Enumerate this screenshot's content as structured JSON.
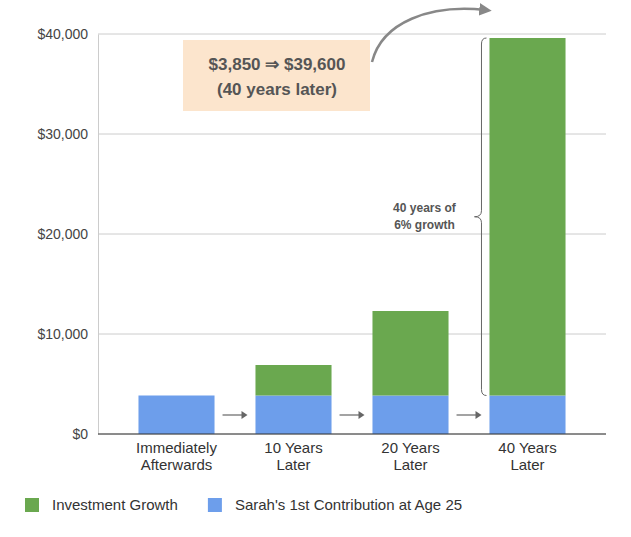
{
  "chart_data": {
    "type": "bar",
    "stacked": true,
    "grid": true,
    "legend": "bottom-left",
    "categories": [
      "Immediately Afterwards",
      "10 Years Later",
      "20 Years Later",
      "40 Years Later"
    ],
    "series": [
      {
        "name": "Investment Growth",
        "color": "#6aa84f",
        "values": [
          0,
          3050,
          8450,
          35750
        ]
      },
      {
        "name": "Sarah's 1st Contribution at Age 25",
        "color": "#6d9eeb",
        "values": [
          3850,
          3850,
          3850,
          3850
        ]
      }
    ],
    "ylim": [
      0,
      40000
    ],
    "yticks": [
      {
        "value": 0,
        "label": "$0"
      },
      {
        "value": 10000,
        "label": "$10,000"
      },
      {
        "value": 20000,
        "label": "$20,000"
      },
      {
        "value": 30000,
        "label": "$30,000"
      },
      {
        "value": 40000,
        "label": "$40,000"
      }
    ],
    "annotations": [
      {
        "text": [
          "$3,850 ⇒ $39,600",
          "(40 years later)"
        ]
      },
      {
        "text": [
          "40 years of",
          "6% growth"
        ]
      }
    ]
  }
}
